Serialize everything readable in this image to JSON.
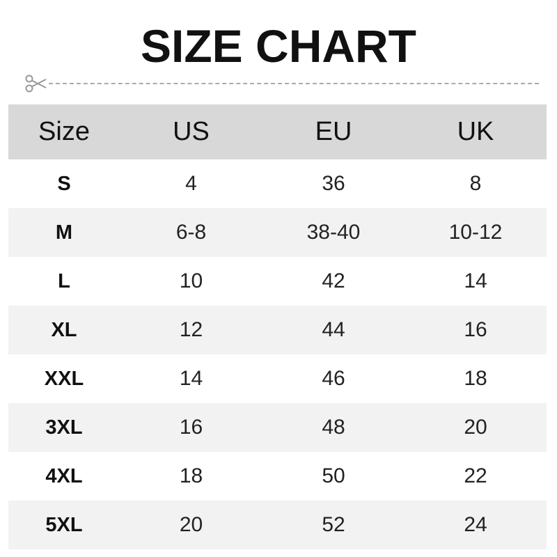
{
  "title": "SIZE CHART",
  "icons": {
    "cut_line": "scissors-icon"
  },
  "table": {
    "headers": [
      "Size",
      "US",
      "EU",
      "UK"
    ],
    "rows": [
      [
        "S",
        "4",
        "36",
        "8"
      ],
      [
        "M",
        "6-8",
        "38-40",
        "10-12"
      ],
      [
        "L",
        "10",
        "42",
        "14"
      ],
      [
        "XL",
        "12",
        "44",
        "16"
      ],
      [
        "XXL",
        "14",
        "46",
        "18"
      ],
      [
        "3XL",
        "16",
        "48",
        "20"
      ],
      [
        "4XL",
        "18",
        "50",
        "22"
      ],
      [
        "5XL",
        "20",
        "52",
        "24"
      ]
    ]
  },
  "colors": {
    "header_bg": "#d8d8d8",
    "stripe_bg": "#f2f2f2"
  }
}
